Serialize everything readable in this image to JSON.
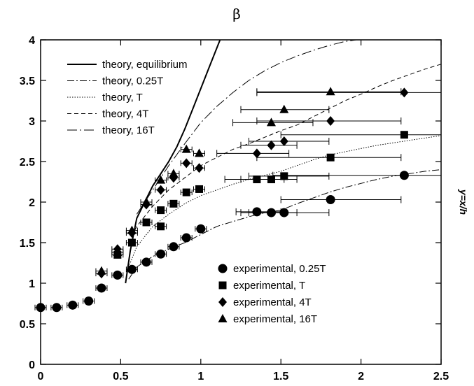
{
  "chart_data": {
    "type": "scatter",
    "title": "β",
    "xlabel": "",
    "ylabel": "y=x/h",
    "xlim": [
      0,
      2.5
    ],
    "ylim": [
      0,
      4
    ],
    "xticks": [
      "0",
      "0.5",
      "1",
      "1.5",
      "2",
      "2.5"
    ],
    "yticks": [
      "0",
      "0.5",
      "1",
      "1.5",
      "2",
      "2.5",
      "3",
      "3.5",
      "4"
    ],
    "grid": false,
    "legend_placement": "top-left (lines), bottom-right (markers)",
    "theory_curves": [
      {
        "name": "theory, equilibrium",
        "style": "solid",
        "points": [
          [
            0.53,
            1.0
          ],
          [
            0.56,
            1.4
          ],
          [
            0.6,
            1.8
          ],
          [
            0.65,
            2.0
          ],
          [
            0.7,
            2.2
          ],
          [
            0.75,
            2.35
          ],
          [
            0.8,
            2.5
          ],
          [
            0.85,
            2.68
          ],
          [
            0.9,
            2.9
          ],
          [
            0.95,
            3.15
          ],
          [
            1.0,
            3.4
          ],
          [
            1.05,
            3.65
          ],
          [
            1.1,
            3.9
          ],
          [
            1.12,
            4.0
          ]
        ]
      },
      {
        "name": "theory, 0.25T",
        "style": "dashdot",
        "points": [
          [
            0.55,
            1.05
          ],
          [
            0.6,
            1.2
          ],
          [
            0.7,
            1.33
          ],
          [
            0.8,
            1.42
          ],
          [
            0.9,
            1.5
          ],
          [
            1.0,
            1.6
          ],
          [
            1.1,
            1.7
          ],
          [
            1.2,
            1.76
          ],
          [
            1.3,
            1.82
          ],
          [
            1.4,
            1.87
          ],
          [
            1.5,
            1.9
          ],
          [
            1.6,
            1.98
          ],
          [
            1.7,
            2.05
          ],
          [
            1.8,
            2.12
          ],
          [
            1.9,
            2.18
          ],
          [
            2.0,
            2.23
          ],
          [
            2.1,
            2.28
          ],
          [
            2.2,
            2.32
          ],
          [
            2.3,
            2.35
          ],
          [
            2.4,
            2.38
          ],
          [
            2.5,
            2.4
          ]
        ]
      },
      {
        "name": "theory, T",
        "style": "dotted",
        "points": [
          [
            0.55,
            1.2
          ],
          [
            0.6,
            1.45
          ],
          [
            0.7,
            1.7
          ],
          [
            0.8,
            1.85
          ],
          [
            0.9,
            1.98
          ],
          [
            1.0,
            2.08
          ],
          [
            1.1,
            2.15
          ],
          [
            1.2,
            2.22
          ],
          [
            1.3,
            2.28
          ],
          [
            1.4,
            2.33
          ],
          [
            1.5,
            2.38
          ],
          [
            1.6,
            2.45
          ],
          [
            1.7,
            2.52
          ],
          [
            1.8,
            2.58
          ],
          [
            1.9,
            2.62
          ],
          [
            2.0,
            2.66
          ],
          [
            2.1,
            2.7
          ],
          [
            2.2,
            2.73
          ],
          [
            2.3,
            2.76
          ],
          [
            2.4,
            2.79
          ],
          [
            2.5,
            2.82
          ]
        ]
      },
      {
        "name": "theory, 4T",
        "style": "dashed",
        "points": [
          [
            0.55,
            1.5
          ],
          [
            0.6,
            1.7
          ],
          [
            0.7,
            1.95
          ],
          [
            0.8,
            2.15
          ],
          [
            0.9,
            2.3
          ],
          [
            1.0,
            2.45
          ],
          [
            1.1,
            2.55
          ],
          [
            1.2,
            2.65
          ],
          [
            1.3,
            2.72
          ],
          [
            1.4,
            2.8
          ],
          [
            1.5,
            2.88
          ],
          [
            1.6,
            2.95
          ],
          [
            1.7,
            3.05
          ],
          [
            1.8,
            3.15
          ],
          [
            1.9,
            3.25
          ],
          [
            2.0,
            3.33
          ],
          [
            2.1,
            3.42
          ],
          [
            2.2,
            3.5
          ],
          [
            2.3,
            3.57
          ],
          [
            2.4,
            3.64
          ],
          [
            2.5,
            3.7
          ]
        ]
      },
      {
        "name": "theory, 16T",
        "style": "longdash",
        "points": [
          [
            0.6,
            1.85
          ],
          [
            0.7,
            2.15
          ],
          [
            0.8,
            2.45
          ],
          [
            0.9,
            2.72
          ],
          [
            1.0,
            2.98
          ],
          [
            1.1,
            3.18
          ],
          [
            1.2,
            3.35
          ],
          [
            1.3,
            3.5
          ],
          [
            1.4,
            3.62
          ],
          [
            1.5,
            3.72
          ],
          [
            1.6,
            3.8
          ],
          [
            1.7,
            3.87
          ],
          [
            1.8,
            3.93
          ],
          [
            1.9,
            3.98
          ],
          [
            1.97,
            4.0
          ]
        ]
      }
    ],
    "experimental_series": [
      {
        "name": "experimental, 0.25T",
        "marker": "circle",
        "points": [
          {
            "x": 0.0,
            "y": 0.7
          },
          {
            "x": 0.1,
            "y": 0.7
          },
          {
            "x": 0.2,
            "y": 0.73
          },
          {
            "x": 0.3,
            "y": 0.78
          },
          {
            "x": 0.38,
            "y": 0.94
          },
          {
            "x": 0.48,
            "y": 1.1
          },
          {
            "x": 0.57,
            "y": 1.17
          },
          {
            "x": 0.66,
            "y": 1.26
          },
          {
            "x": 0.75,
            "y": 1.36
          },
          {
            "x": 0.83,
            "y": 1.45
          },
          {
            "x": 0.91,
            "y": 1.56
          },
          {
            "x": 1.0,
            "y": 1.67
          },
          {
            "x": 1.35,
            "y": 1.88,
            "xerr": [
              1.22,
              1.5
            ]
          },
          {
            "x": 1.44,
            "y": 1.87,
            "xerr": [
              1.25,
              1.6
            ]
          },
          {
            "x": 1.52,
            "y": 1.87,
            "xerr": [
              1.3,
              1.8
            ]
          },
          {
            "x": 1.81,
            "y": 2.03,
            "xerr": [
              1.5,
              2.25
            ]
          },
          {
            "x": 2.27,
            "y": 2.33,
            "xerr": [
              1.45,
              2.5
            ]
          }
        ]
      },
      {
        "name": "experimental, T",
        "marker": "square",
        "points": [
          {
            "x": 0.48,
            "y": 1.35
          },
          {
            "x": 0.57,
            "y": 1.5
          },
          {
            "x": 0.66,
            "y": 1.75
          },
          {
            "x": 0.75,
            "y": 1.9
          },
          {
            "x": 0.75,
            "y": 1.7
          },
          {
            "x": 0.83,
            "y": 1.98
          },
          {
            "x": 0.91,
            "y": 2.12
          },
          {
            "x": 0.99,
            "y": 2.16
          },
          {
            "x": 1.35,
            "y": 2.28,
            "xerr": [
              1.15,
              1.52
            ]
          },
          {
            "x": 1.44,
            "y": 2.28,
            "xerr": [
              1.25,
              1.6
            ]
          },
          {
            "x": 1.52,
            "y": 2.32,
            "xerr": [
              1.3,
              1.8
            ]
          },
          {
            "x": 1.81,
            "y": 2.55,
            "xerr": [
              1.35,
              2.25
            ]
          },
          {
            "x": 2.27,
            "y": 2.83,
            "xerr": [
              1.5,
              2.5
            ]
          }
        ]
      },
      {
        "name": "experimental, 4T",
        "marker": "diamond",
        "points": [
          {
            "x": 0.38,
            "y": 1.12
          },
          {
            "x": 0.48,
            "y": 1.42
          },
          {
            "x": 0.57,
            "y": 1.62
          },
          {
            "x": 0.66,
            "y": 1.97
          },
          {
            "x": 0.75,
            "y": 2.15
          },
          {
            "x": 0.83,
            "y": 2.3
          },
          {
            "x": 0.91,
            "y": 2.48
          },
          {
            "x": 0.99,
            "y": 2.42
          },
          {
            "x": 1.35,
            "y": 2.6,
            "xerr": [
              1.1,
              1.55
            ]
          },
          {
            "x": 1.44,
            "y": 2.7,
            "xerr": [
              1.25,
              1.6
            ]
          },
          {
            "x": 1.52,
            "y": 2.75,
            "xerr": [
              1.3,
              1.8
            ]
          },
          {
            "x": 1.81,
            "y": 3.0,
            "xerr": [
              1.35,
              2.25
            ]
          },
          {
            "x": 2.27,
            "y": 3.35,
            "xerr": [
              1.35,
              2.5
            ]
          }
        ]
      },
      {
        "name": "experimental, 16T",
        "marker": "triangle",
        "points": [
          {
            "x": 0.38,
            "y": 1.15
          },
          {
            "x": 0.48,
            "y": 1.38
          },
          {
            "x": 0.57,
            "y": 1.65
          },
          {
            "x": 0.66,
            "y": 2.0
          },
          {
            "x": 0.75,
            "y": 2.27
          },
          {
            "x": 0.83,
            "y": 2.35
          },
          {
            "x": 0.91,
            "y": 2.65
          },
          {
            "x": 0.99,
            "y": 2.6
          },
          {
            "x": 1.44,
            "y": 2.98,
            "xerr": [
              1.2,
              1.7
            ]
          },
          {
            "x": 1.52,
            "y": 3.14,
            "xerr": [
              1.25,
              1.8
            ]
          },
          {
            "x": 1.81,
            "y": 3.36,
            "xerr": [
              1.35,
              2.25
            ]
          }
        ]
      }
    ]
  }
}
